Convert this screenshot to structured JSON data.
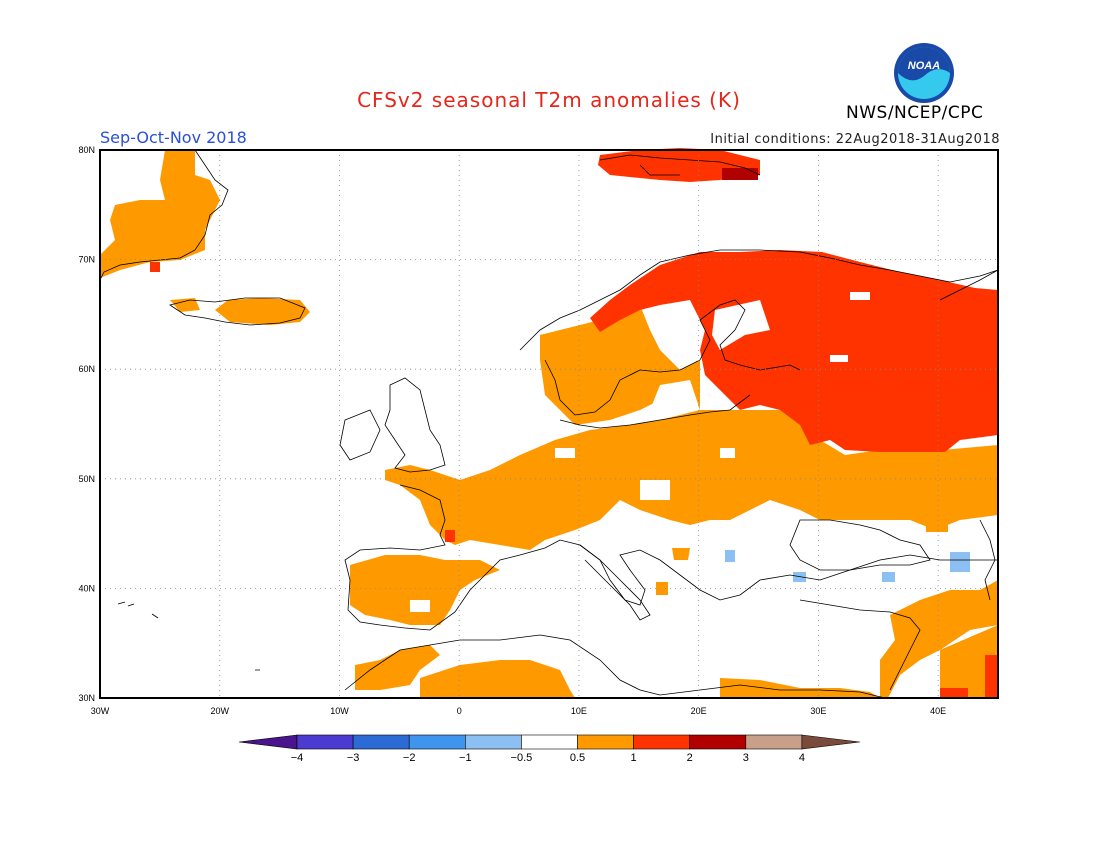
{
  "title": "CFSv2 seasonal T2m anomalies (K)",
  "season": "Sep-Oct-Nov 2018",
  "initial_conditions": "Initial conditions: 22Aug2018-31Aug2018",
  "agency": "NWS/NCEP/CPC",
  "logo_text": "NOAA",
  "lat_labels": [
    "80N",
    "70N",
    "60N",
    "50N",
    "40N",
    "30N"
  ],
  "lon_labels": [
    "30W",
    "20W",
    "10W",
    "0",
    "10E",
    "20E",
    "30E",
    "40E"
  ],
  "colorbar_labels": [
    "-4",
    "-3",
    "-2",
    "-1",
    "-0.5",
    "0.5",
    "1",
    "2",
    "3",
    "4"
  ],
  "colors": {
    "c_m4": "#4a148c",
    "c_m3": "#4b3bd0",
    "c_m2": "#2c6bd6",
    "c_m1": "#3f95ee",
    "c_m05": "#8cc0f2",
    "c_0": "#ffffff",
    "c_05": "#ff9900",
    "c_1": "#ff3300",
    "c_2": "#b00000",
    "c_3": "#c8a08a",
    "c_4": "#7a4a3a",
    "coast": "#000000",
    "grid": "#888888"
  }
}
